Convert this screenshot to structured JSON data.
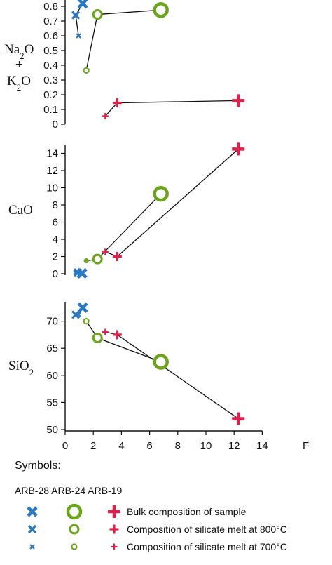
{
  "colors": {
    "arb28": "#2b78c2",
    "arb24": "#6aa51c",
    "arb19": "#e0204a",
    "axis": "#111111"
  },
  "x_axis": {
    "ticks": [
      "0",
      "2",
      "4",
      "6",
      "8",
      "10",
      "12",
      "14"
    ],
    "label": "F"
  },
  "panels": {
    "alk": {
      "ylabel": [
        "Na2O",
        "+",
        "K2O"
      ],
      "yticks": [
        "0",
        "0.1",
        "0.2",
        "0.3",
        "0.4",
        "0.5",
        "0.6",
        "0.7",
        "0.8"
      ]
    },
    "cao": {
      "ylabel": "CaO",
      "yticks": [
        "0",
        "2",
        "4",
        "6",
        "8",
        "10",
        "12",
        "14"
      ]
    },
    "sio2": {
      "ylabel": "SiO2",
      "yticks": [
        "50",
        "55",
        "60",
        "65",
        "70"
      ]
    }
  },
  "legend": {
    "title": "Symbols:",
    "samples": "ARB-28 ARB-24 ARB-19",
    "rows": [
      "Bulk composition of sample",
      "Composition of silicate melt at 800°C",
      "Composition of silicate melt at 700°C"
    ]
  },
  "chart_data": [
    {
      "type": "scatter",
      "panel": "alk",
      "ylabel": "Na2O + K2O",
      "xlim": [
        0,
        14
      ],
      "ylim": [
        0,
        0.8
      ],
      "series": [
        {
          "sample": "ARB-28",
          "points": [
            {
              "x": 1.25,
              "y": 0.82,
              "kind": "bulk"
            },
            {
              "x": 0.75,
              "y": 0.74,
              "kind": "800C"
            },
            {
              "x": 0.95,
              "y": 0.6,
              "kind": "700C"
            }
          ],
          "path": [
            [
              0.95,
              0.6
            ],
            [
              0.75,
              0.74
            ],
            [
              1.25,
              0.82
            ]
          ]
        },
        {
          "sample": "ARB-24",
          "points": [
            {
              "x": 6.8,
              "y": 0.775,
              "kind": "bulk"
            },
            {
              "x": 2.3,
              "y": 0.745,
              "kind": "800C"
            },
            {
              "x": 1.5,
              "y": 0.365,
              "kind": "700C"
            }
          ],
          "path": [
            [
              1.5,
              0.365
            ],
            [
              2.3,
              0.745
            ],
            [
              6.8,
              0.775
            ]
          ]
        },
        {
          "sample": "ARB-19",
          "points": [
            {
              "x": 12.3,
              "y": 0.16,
              "kind": "bulk"
            },
            {
              "x": 3.7,
              "y": 0.145,
              "kind": "800C"
            },
            {
              "x": 2.85,
              "y": 0.055,
              "kind": "700C"
            }
          ],
          "path": [
            [
              2.85,
              0.055
            ],
            [
              3.7,
              0.145
            ],
            [
              12.3,
              0.16
            ]
          ]
        }
      ]
    },
    {
      "type": "scatter",
      "panel": "cao",
      "ylabel": "CaO",
      "xlim": [
        0,
        14
      ],
      "ylim": [
        0,
        14
      ],
      "series": [
        {
          "sample": "ARB-28",
          "points": [
            {
              "x": 1.2,
              "y": 0.05,
              "kind": "bulk"
            },
            {
              "x": 0.9,
              "y": 0.15,
              "kind": "800C"
            },
            {
              "x": 0.75,
              "y": 0.15,
              "kind": "700C"
            }
          ],
          "path": []
        },
        {
          "sample": "ARB-24",
          "points": [
            {
              "x": 6.8,
              "y": 9.3,
              "kind": "bulk"
            },
            {
              "x": 2.3,
              "y": 1.7,
              "kind": "800C"
            },
            {
              "x": 1.5,
              "y": 1.5,
              "kind": "700C"
            }
          ],
          "path": [
            [
              1.5,
              1.5
            ],
            [
              2.3,
              1.7
            ],
            [
              6.8,
              9.3
            ]
          ]
        },
        {
          "sample": "ARB-19",
          "points": [
            {
              "x": 12.3,
              "y": 14.5,
              "kind": "bulk"
            },
            {
              "x": 3.7,
              "y": 2.0,
              "kind": "800C"
            },
            {
              "x": 2.85,
              "y": 2.55,
              "kind": "700C"
            }
          ],
          "path": [
            [
              2.85,
              2.55
            ],
            [
              3.7,
              2.0
            ],
            [
              12.3,
              14.5
            ]
          ]
        }
      ]
    },
    {
      "type": "scatter",
      "panel": "sio2",
      "ylabel": "SiO2",
      "xlim": [
        0,
        14
      ],
      "ylim": [
        50,
        73
      ],
      "series": [
        {
          "sample": "ARB-28",
          "points": [
            {
              "x": 1.25,
              "y": 72.5,
              "kind": "bulk"
            },
            {
              "x": 0.75,
              "y": 71.2,
              "kind": "800C"
            },
            {
              "x": 0.95,
              "y": 71.2,
              "kind": "700C"
            }
          ],
          "path": [
            [
              0.75,
              71.2
            ],
            [
              0.95,
              71.2
            ],
            [
              1.25,
              72.5
            ]
          ]
        },
        {
          "sample": "ARB-24",
          "points": [
            {
              "x": 6.8,
              "y": 62.5,
              "kind": "bulk"
            },
            {
              "x": 2.3,
              "y": 66.9,
              "kind": "800C"
            },
            {
              "x": 1.5,
              "y": 70.0,
              "kind": "700C"
            }
          ],
          "path": [
            [
              1.5,
              70.0
            ],
            [
              2.3,
              66.9
            ],
            [
              6.8,
              62.5
            ]
          ]
        },
        {
          "sample": "ARB-19",
          "points": [
            {
              "x": 12.3,
              "y": 52.0,
              "kind": "bulk"
            },
            {
              "x": 3.7,
              "y": 67.5,
              "kind": "800C"
            },
            {
              "x": 2.85,
              "y": 68.0,
              "kind": "700C"
            }
          ],
          "path": [
            [
              2.85,
              68.0
            ],
            [
              3.7,
              67.5
            ],
            [
              12.3,
              52.0
            ]
          ]
        }
      ]
    }
  ]
}
